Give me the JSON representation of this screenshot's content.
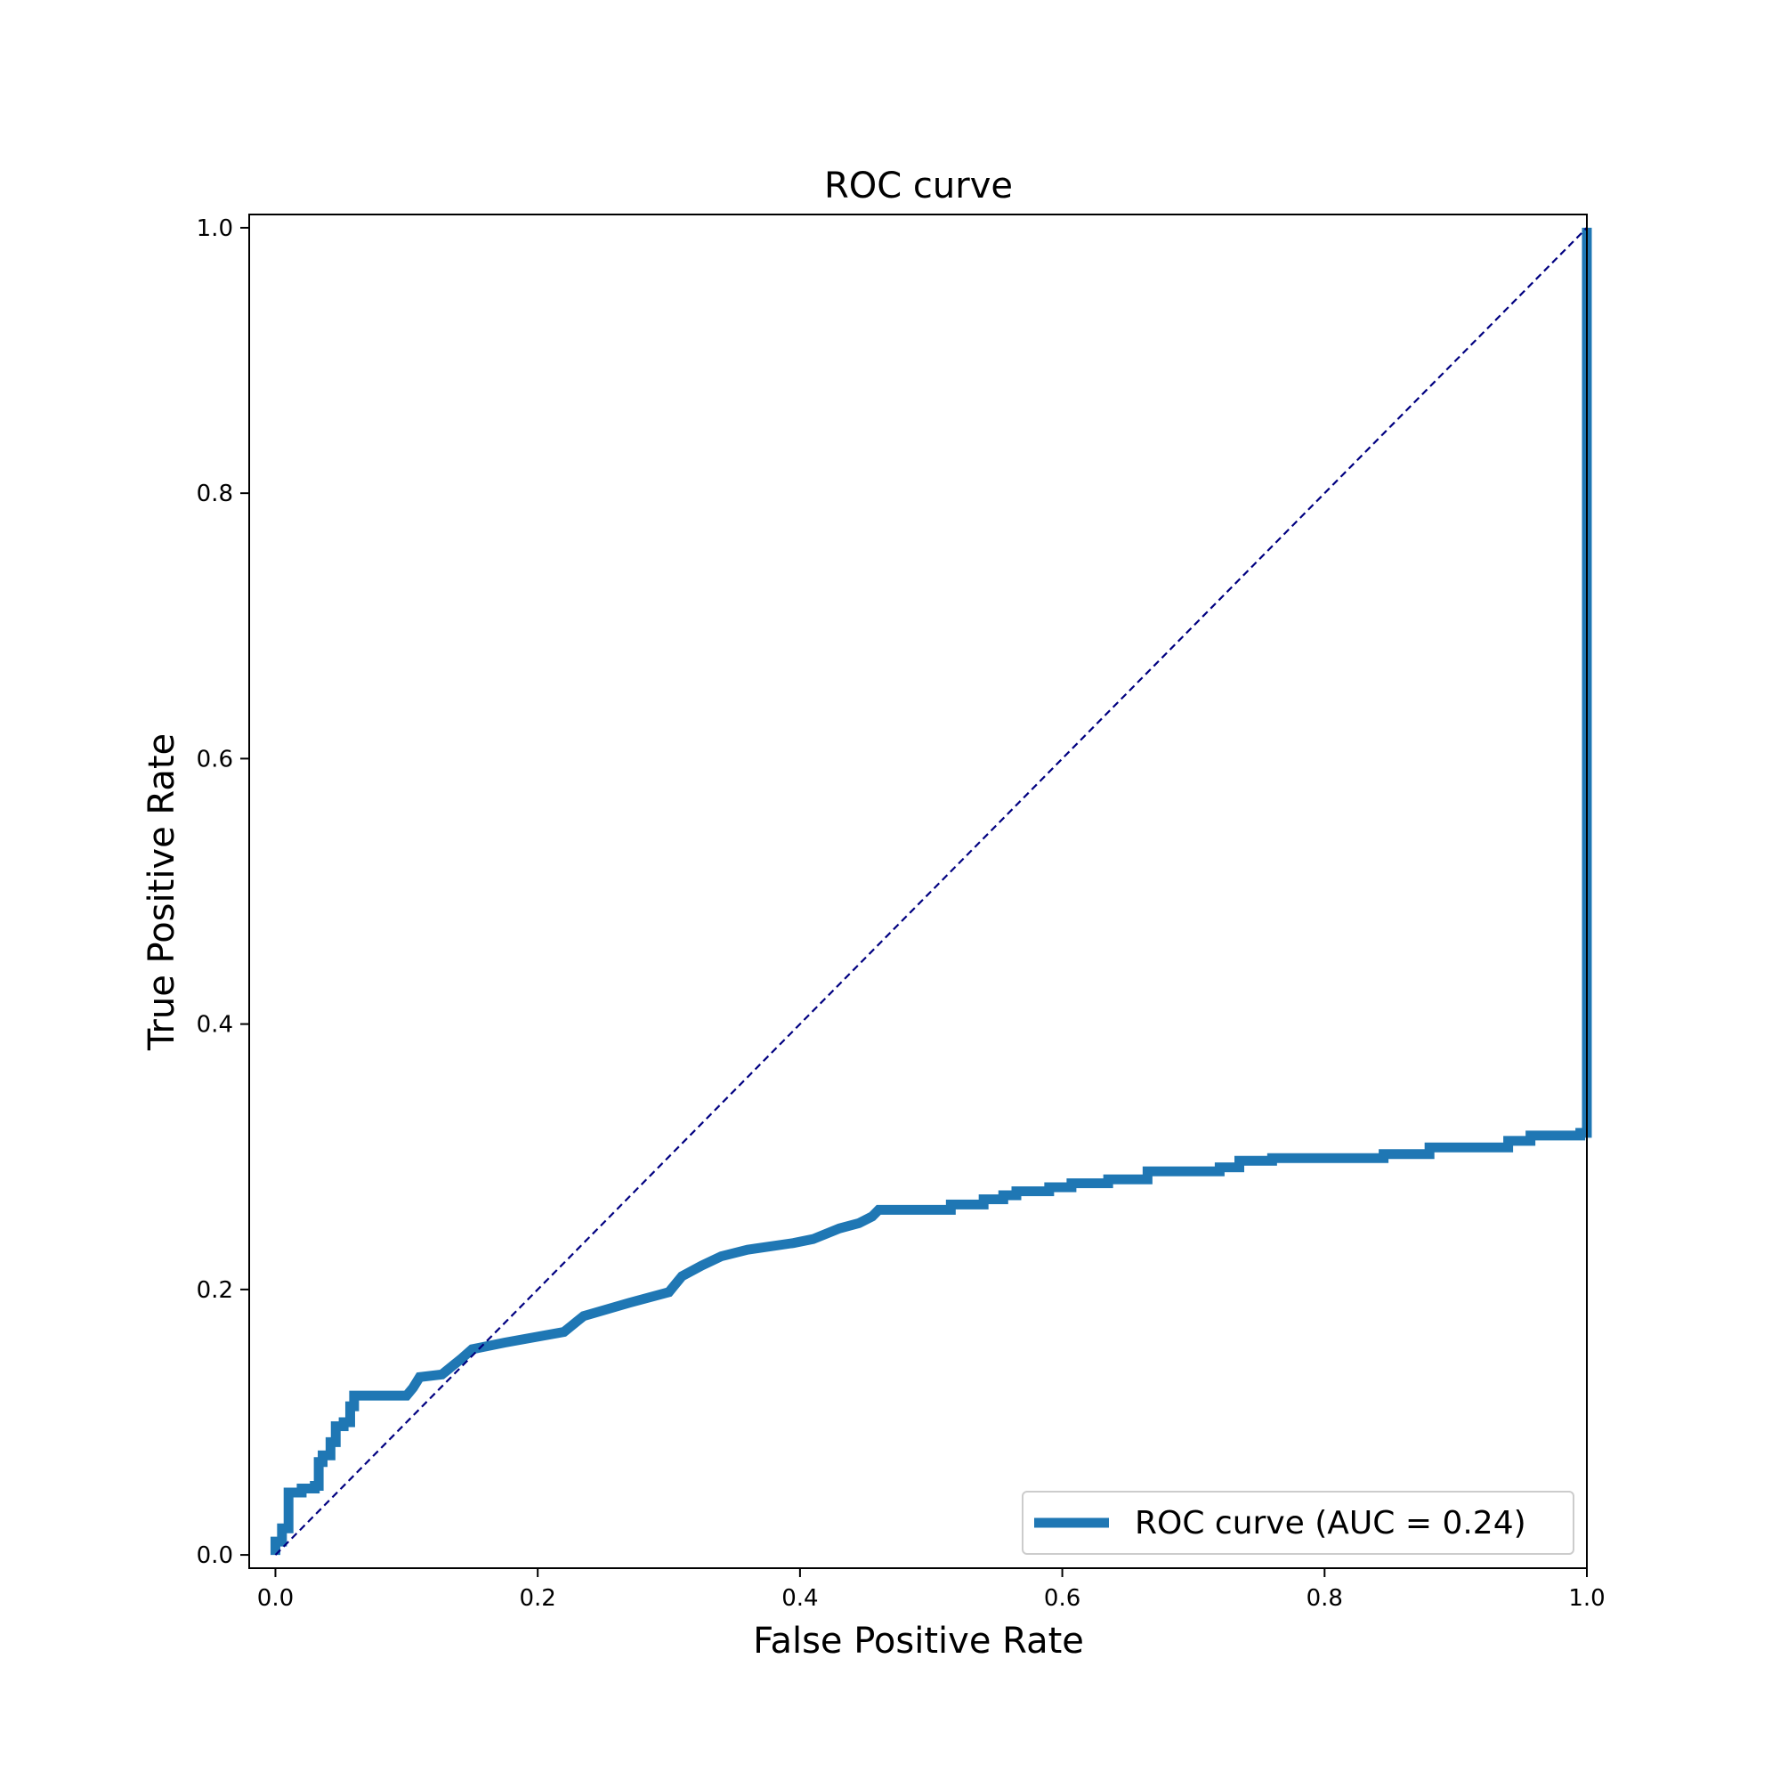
{
  "chart_data": {
    "type": "line",
    "title": "ROC curve",
    "xlabel": "False Positive Rate",
    "ylabel": "True Positive Rate",
    "xlim": [
      -0.02,
      1.0
    ],
    "ylim": [
      -0.01,
      1.01
    ],
    "xticks": [
      0.0,
      0.2,
      0.4,
      0.6,
      0.8,
      1.0
    ],
    "yticks": [
      0.0,
      0.2,
      0.4,
      0.6,
      0.8,
      1.0
    ],
    "xtick_labels": [
      "0.0",
      "0.2",
      "0.4",
      "0.6",
      "0.8",
      "1.0"
    ],
    "ytick_labels": [
      "0.0",
      "0.2",
      "0.4",
      "0.6",
      "0.8",
      "1.0"
    ],
    "grid": false,
    "legend_position": "lower-right",
    "series": [
      {
        "name": "ROC curve (AUC = 0.24)",
        "color": "#1f77b4",
        "style": "solid",
        "step": true,
        "x": [
          0.0,
          0.0,
          0.005,
          0.005,
          0.01,
          0.01,
          0.02,
          0.02,
          0.03,
          0.03,
          0.033,
          0.033,
          0.036,
          0.036,
          0.042,
          0.042,
          0.046,
          0.046,
          0.052,
          0.052,
          0.057,
          0.057,
          0.06,
          0.06,
          0.1,
          0.105,
          0.105,
          0.11,
          0.11,
          0.127,
          0.127,
          0.142,
          0.142,
          0.15,
          0.15,
          0.175,
          0.175,
          0.22,
          0.225,
          0.23,
          0.23,
          0.235,
          0.235,
          0.27,
          0.27,
          0.3,
          0.3,
          0.31,
          0.31,
          0.325,
          0.325,
          0.34,
          0.34,
          0.36,
          0.36,
          0.395,
          0.395,
          0.41,
          0.41,
          0.42,
          0.42,
          0.43,
          0.43,
          0.445,
          0.445,
          0.455,
          0.46,
          0.515,
          0.515,
          0.54,
          0.54,
          0.555,
          0.555,
          0.565,
          0.565,
          0.59,
          0.59,
          0.607,
          0.607,
          0.635,
          0.635,
          0.665,
          0.665,
          0.72,
          0.72,
          0.735,
          0.735,
          0.76,
          0.76,
          0.845,
          0.845,
          0.88,
          0.88,
          0.94,
          0.94,
          0.957,
          0.957,
          0.995,
          0.995,
          1.0,
          1.0
        ],
        "y": [
          0.0,
          0.01,
          0.01,
          0.02,
          0.02,
          0.047,
          0.047,
          0.05,
          0.05,
          0.052,
          0.052,
          0.07,
          0.07,
          0.075,
          0.075,
          0.085,
          0.085,
          0.097,
          0.097,
          0.1,
          0.1,
          0.112,
          0.112,
          0.12,
          0.12,
          0.126,
          0.126,
          0.134,
          0.134,
          0.136,
          0.136,
          0.148,
          0.148,
          0.155,
          0.155,
          0.16,
          0.16,
          0.168,
          0.172,
          0.176,
          0.176,
          0.18,
          0.18,
          0.19,
          0.19,
          0.198,
          0.198,
          0.21,
          0.21,
          0.218,
          0.218,
          0.225,
          0.225,
          0.23,
          0.23,
          0.235,
          0.235,
          0.238,
          0.238,
          0.242,
          0.242,
          0.246,
          0.246,
          0.25,
          0.25,
          0.255,
          0.26,
          0.26,
          0.264,
          0.264,
          0.268,
          0.268,
          0.271,
          0.271,
          0.274,
          0.274,
          0.277,
          0.277,
          0.28,
          0.28,
          0.283,
          0.283,
          0.289,
          0.289,
          0.292,
          0.292,
          0.297,
          0.297,
          0.299,
          0.299,
          0.302,
          0.302,
          0.307,
          0.307,
          0.312,
          0.312,
          0.316,
          0.316,
          0.318,
          0.318,
          1.0
        ]
      },
      {
        "name": "",
        "color": "#000080",
        "style": "dashed",
        "x": [
          0.0,
          1.0
        ],
        "y": [
          0.0,
          1.0
        ]
      }
    ],
    "legend": {
      "entries": [
        "ROC curve (AUC = 0.24)"
      ]
    }
  }
}
